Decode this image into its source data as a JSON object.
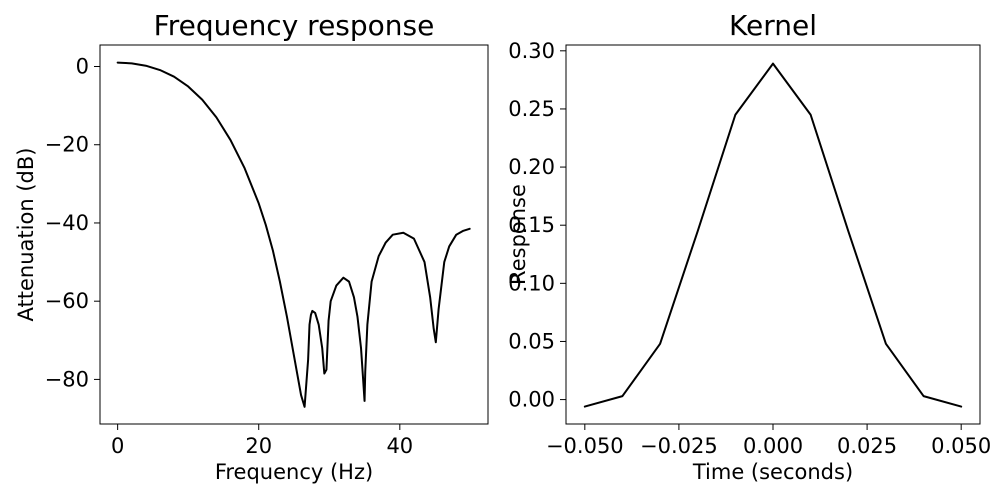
{
  "chart_data": [
    {
      "type": "line",
      "title": "Frequency response",
      "xlabel": "Frequency (Hz)",
      "ylabel": "Attenuation (dB)",
      "xlim": [
        -2.5,
        52.5
      ],
      "ylim": [
        -91.4,
        5.5
      ],
      "xticks": [
        0,
        20,
        40
      ],
      "xtick_labels": [
        "0",
        "20",
        "40"
      ],
      "yticks": [
        0,
        -20,
        -40,
        -60,
        -80
      ],
      "ytick_labels": [
        "0",
        "−20",
        "−40",
        "−60",
        "−80"
      ],
      "grid": false,
      "series": [
        {
          "color": "#000000",
          "x": [
            0,
            2,
            4,
            6,
            8,
            10,
            12,
            14,
            16,
            18,
            20,
            21,
            22,
            23,
            24,
            25,
            26,
            26.5,
            27,
            27.2,
            27.4,
            27.6,
            28,
            28.5,
            29,
            29.3,
            29.6,
            29.9,
            30.2,
            31,
            32,
            32.8,
            33.5,
            34,
            34.5,
            34.8,
            35.0,
            35.1,
            35.4,
            36,
            37,
            38,
            39,
            40.5,
            42,
            43.5,
            44.3,
            44.8,
            45.1,
            45.5,
            46.3,
            47,
            48,
            49,
            49.9
          ],
          "y": [
            1.0,
            0.8,
            0.2,
            -0.9,
            -2.6,
            -5.1,
            -8.5,
            -13.0,
            -18.8,
            -26.0,
            -35.0,
            -40.5,
            -47.0,
            -55.0,
            -64.0,
            -74.0,
            -84.0,
            -87.0,
            -75.0,
            -66.0,
            -63.5,
            -62.5,
            -63.0,
            -66.0,
            -72.0,
            -78.5,
            -77.5,
            -65.0,
            -60.0,
            -56.0,
            -54.0,
            -55.0,
            -59.0,
            -64.0,
            -72.0,
            -80.0,
            -85.5,
            -78.0,
            -66.0,
            -55.0,
            -48.5,
            -45.0,
            -43.0,
            -42.5,
            -44.0,
            -50.0,
            -59.0,
            -67.0,
            -70.5,
            -62.0,
            -50.0,
            -46.0,
            -43.0,
            -42.0,
            -41.5
          ]
        }
      ]
    },
    {
      "type": "line",
      "title": "Kernel",
      "xlabel": "Time (seconds)",
      "ylabel": "Response",
      "xlim": [
        -0.055,
        0.055
      ],
      "ylim": [
        -0.021,
        0.305
      ],
      "xticks": [
        -0.05,
        -0.025,
        0.0,
        0.025,
        0.05
      ],
      "xtick_labels": [
        "−0.050",
        "−0.025",
        "0.000",
        "0.025",
        "0.050"
      ],
      "yticks": [
        0.0,
        0.05,
        0.1,
        0.15,
        0.2,
        0.25,
        0.3
      ],
      "ytick_labels": [
        "0.00",
        "0.05",
        "0.10",
        "0.15",
        "0.20",
        "0.25",
        "0.30"
      ],
      "grid": false,
      "series": [
        {
          "color": "#000000",
          "x": [
            -0.05,
            -0.04,
            -0.03,
            -0.02,
            -0.01,
            0.0,
            0.01,
            0.02,
            0.03,
            0.04,
            0.05
          ],
          "y": [
            -0.006,
            0.003,
            0.048,
            0.145,
            0.245,
            0.289,
            0.245,
            0.145,
            0.048,
            0.003,
            -0.006
          ]
        }
      ]
    }
  ]
}
